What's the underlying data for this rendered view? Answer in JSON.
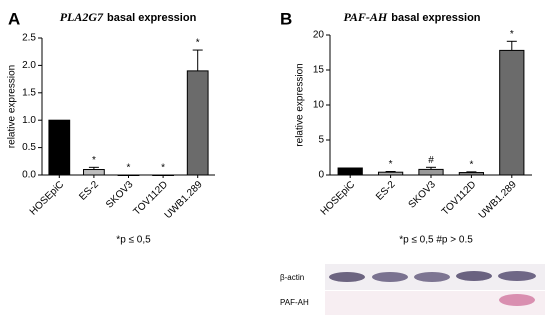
{
  "chart_data": [
    {
      "type": "bar",
      "panel": "A",
      "title_italic": "PLA2G7",
      "title": "basal expression",
      "ylabel": "relative expression",
      "categories": [
        "HOSEpiC",
        "ES-2",
        "SKOV3",
        "TOV112D",
        "UWB1.289"
      ],
      "values": [
        1.0,
        0.1,
        0,
        0,
        1.9
      ],
      "errors": [
        0,
        0.04,
        0,
        0,
        0.38
      ],
      "bar_labels": [
        null,
        "*",
        "*",
        "*",
        "*"
      ],
      "colors": [
        "#000000",
        "#bdbdbd",
        "#999999",
        "#888888",
        "#6b6b6b"
      ],
      "ylim": [
        0,
        2.5
      ],
      "yticks": [
        {
          "value": 0,
          "label": "0.0"
        },
        {
          "value": 0.5,
          "label": "0.5"
        },
        {
          "value": 1,
          "label": "1.0"
        },
        {
          "value": 1.5,
          "label": "1.5"
        },
        {
          "value": 2,
          "label": "2.0"
        },
        {
          "value": 2.5,
          "label": "2.5"
        }
      ],
      "footnote": "*p ≤ 0,5"
    },
    {
      "type": "bar",
      "panel": "B",
      "title_italic": "PAF-AH",
      "title": "basal expression",
      "ylabel": "relative expression",
      "categories": [
        "HOSEpiC",
        "ES-2",
        "SKOV3",
        "TOV112D",
        "UWB1.289"
      ],
      "values": [
        1.0,
        0.4,
        0.8,
        0.35,
        17.8
      ],
      "errors": [
        0,
        0.1,
        0.3,
        0.1,
        1.3
      ],
      "bar_labels": [
        null,
        "*",
        "#",
        "*",
        "*"
      ],
      "colors": [
        "#000000",
        "#b0b0b0",
        "#9a9a9a",
        "#888888",
        "#6b6b6b"
      ],
      "ylim": [
        0,
        20
      ],
      "yticks": [
        0,
        5,
        10,
        15,
        20
      ],
      "footnote": "*p ≤ 0,5  #p > 0.5"
    }
  ],
  "blot": {
    "labels": [
      "β-actin",
      "PAF-AH"
    ]
  }
}
